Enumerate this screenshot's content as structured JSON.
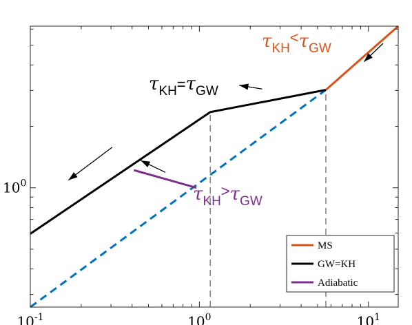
{
  "chart_data": {
    "type": "line",
    "xscale": "log",
    "yscale": "log",
    "xlim": [
      0.1,
      15
    ],
    "ylim": [
      0.26,
      6.2
    ],
    "x_ticks": [
      {
        "value": 0.1,
        "base": "10",
        "exp": "-1"
      },
      {
        "value": 1,
        "base": "10",
        "exp": "0"
      },
      {
        "value": 10,
        "base": "10",
        "exp": "1"
      }
    ],
    "y_ticks": [
      {
        "value": 1,
        "base": "10",
        "exp": "0"
      }
    ],
    "grid": false,
    "legend_position": "bottom-right",
    "colors": {
      "ms": "#D95319",
      "gwkh": "#000000",
      "adiabatic": "#7E2F8E",
      "diagonal": "#0072BD",
      "vline": "#808080",
      "annotation_above": "#D95319",
      "annotation_equal": "#000000",
      "annotation_below": "#7E2F8E"
    },
    "series": [
      {
        "name": "MS",
        "style": "solid",
        "color_key": "ms",
        "x": [
          5.6,
          15
        ],
        "y": [
          3.02,
          6.2
        ]
      },
      {
        "name": "GW=KH",
        "style": "solid",
        "color_key": "gwkh",
        "x": [
          0.1,
          1.16,
          5.6
        ],
        "y": [
          0.595,
          2.35,
          3.02
        ]
      },
      {
        "name": "Adiabatic",
        "style": "solid",
        "color_key": "adiabatic",
        "x": [
          0.41,
          0.96
        ],
        "y": [
          1.22,
          1.0
        ]
      },
      {
        "style": "dashed",
        "color_key": "diagonal",
        "x": [
          0.1,
          5.6
        ],
        "y": [
          0.26,
          3.02
        ]
      },
      {
        "style": "dashed",
        "color_key": "vline",
        "x": [
          1.16,
          1.16
        ],
        "y": [
          0.26,
          2.35
        ]
      },
      {
        "style": "dashed",
        "color_key": "vline",
        "x": [
          5.6,
          5.6
        ],
        "y": [
          0.26,
          3.02
        ]
      }
    ],
    "legend": [
      "MS",
      "GW=KH",
      "Adiabatic"
    ],
    "annotations": [
      {
        "id": "above",
        "tau": "τ",
        "sub1": "KH",
        "op": "<",
        "sub2": "GW",
        "tau2": "τ",
        "color_key": "annotation_above"
      },
      {
        "id": "equal",
        "tau": "τ",
        "sub1": "KH",
        "op": "=",
        "sub2": "GW",
        "tau2": "τ",
        "color_key": "annotation_equal"
      },
      {
        "id": "below",
        "tau": "τ",
        "sub1": "KH",
        "op": ">",
        "sub2": "GW",
        "tau2": "τ",
        "color_key": "annotation_below"
      }
    ],
    "arrows": [
      {
        "from": [
          12.2,
          5.1
        ],
        "to": [
          9.4,
          4.15
        ]
      },
      {
        "from": [
          2.35,
          3.05
        ],
        "to": [
          1.72,
          3.18
        ]
      },
      {
        "from": [
          0.63,
          1.19
        ],
        "to": [
          0.45,
          1.36
        ]
      },
      {
        "from": [
          0.305,
          1.58
        ],
        "to": [
          0.168,
          1.09
        ]
      }
    ]
  }
}
